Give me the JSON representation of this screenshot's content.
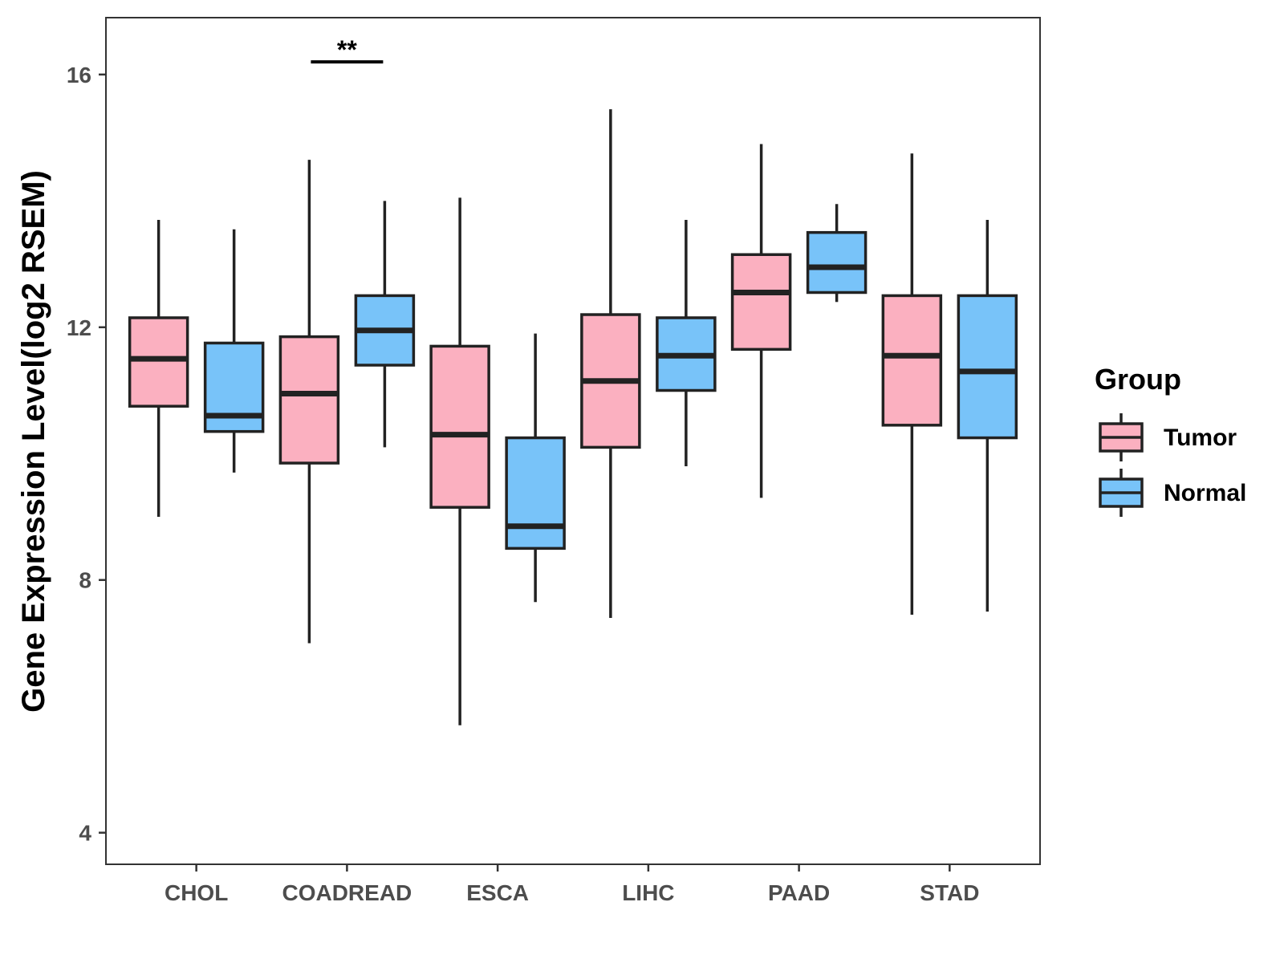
{
  "chart_data": {
    "type": "boxplot",
    "title": "",
    "xlabel": "",
    "ylabel": "Gene Expression Level(log2 RSEM)",
    "ylim": [
      3.5,
      16.9
    ],
    "yticks": [
      4,
      8,
      12,
      16
    ],
    "grid": false,
    "legend_position": "right",
    "legend": {
      "title": "Group",
      "entries": [
        {
          "name": "Tumor",
          "color": "#fbb0c0"
        },
        {
          "name": "Normal",
          "color": "#78c3f9"
        }
      ]
    },
    "categories": [
      "CHOL",
      "COADREAD",
      "ESCA",
      "LIHC",
      "PAAD",
      "STAD"
    ],
    "series": [
      {
        "name": "Tumor",
        "color": "#fbb0c0",
        "boxes": [
          {
            "min": 9.0,
            "q1": 10.75,
            "median": 11.5,
            "q3": 12.15,
            "max": 13.7
          },
          {
            "min": 7.0,
            "q1": 9.85,
            "median": 10.95,
            "q3": 11.85,
            "max": 14.65
          },
          {
            "min": 5.7,
            "q1": 9.15,
            "median": 10.3,
            "q3": 11.7,
            "max": 14.05
          },
          {
            "min": 7.4,
            "q1": 10.1,
            "median": 11.15,
            "q3": 12.2,
            "max": 15.45
          },
          {
            "min": 9.3,
            "q1": 11.65,
            "median": 12.55,
            "q3": 13.15,
            "max": 14.9
          },
          {
            "min": 7.45,
            "q1": 10.45,
            "median": 11.55,
            "q3": 12.5,
            "max": 14.75
          }
        ]
      },
      {
        "name": "Normal",
        "color": "#78c3f9",
        "boxes": [
          {
            "min": 9.7,
            "q1": 10.35,
            "median": 10.6,
            "q3": 11.75,
            "max": 13.55
          },
          {
            "min": 10.1,
            "q1": 11.4,
            "median": 11.95,
            "q3": 12.5,
            "max": 14.0
          },
          {
            "min": 7.65,
            "q1": 8.5,
            "median": 8.85,
            "q3": 10.25,
            "max": 11.9
          },
          {
            "min": 9.8,
            "q1": 11.0,
            "median": 11.55,
            "q3": 12.15,
            "max": 13.7
          },
          {
            "min": 12.4,
            "q1": 12.55,
            "median": 12.95,
            "q3": 13.5,
            "max": 13.95
          },
          {
            "min": 7.5,
            "q1": 10.25,
            "median": 11.3,
            "q3": 12.5,
            "max": 13.7
          }
        ]
      }
    ],
    "annotations": [
      {
        "category": "COADREAD",
        "text": "**",
        "y": 16.2
      }
    ]
  }
}
